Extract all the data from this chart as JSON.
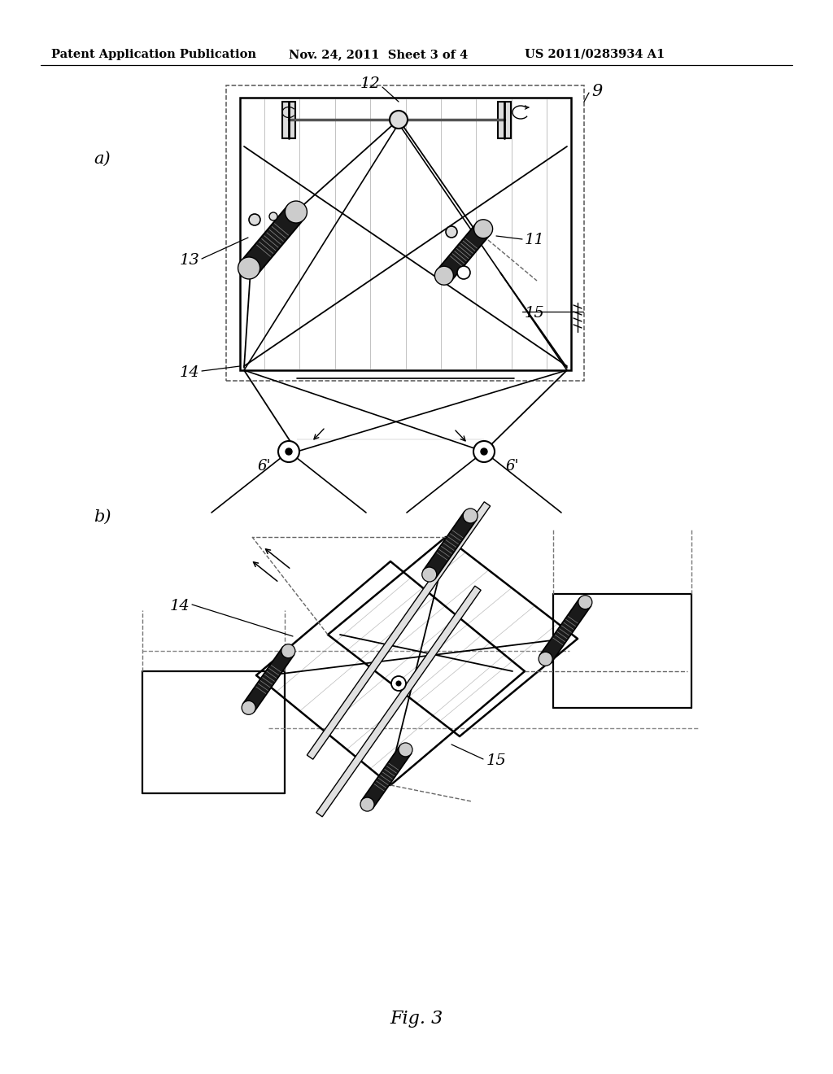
{
  "title_left": "Patent Application Publication",
  "title_mid": "Nov. 24, 2011  Sheet 3 of 4",
  "title_right": "US 2011/0283934 A1",
  "fig_label": "Fig. 3",
  "bg_color": "#ffffff",
  "line_color": "#000000"
}
